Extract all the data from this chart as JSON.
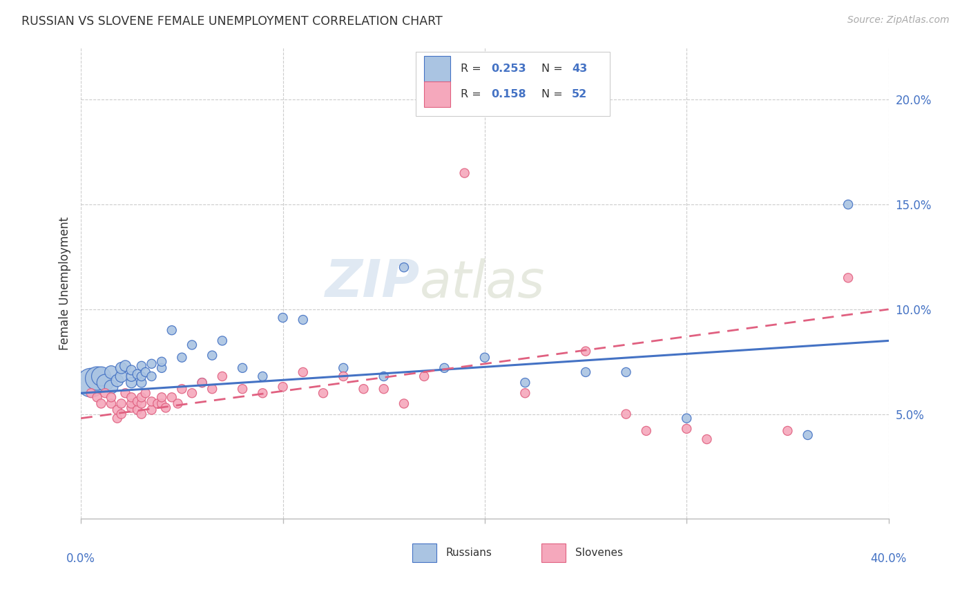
{
  "title": "RUSSIAN VS SLOVENE FEMALE UNEMPLOYMENT CORRELATION CHART",
  "source": "Source: ZipAtlas.com",
  "ylabel": "Female Unemployment",
  "yticks": [
    0.05,
    0.1,
    0.15,
    0.2
  ],
  "ytick_labels": [
    "5.0%",
    "10.0%",
    "15.0%",
    "20.0%"
  ],
  "xmin": 0.0,
  "xmax": 0.4,
  "ymin": 0.0,
  "ymax": 0.225,
  "watermark_zip": "ZIP",
  "watermark_atlas": "atlas",
  "russians_color": "#aac4e2",
  "slovenes_color": "#f5a8bc",
  "russians_edge_color": "#4472c4",
  "slovenes_edge_color": "#e06080",
  "russians_line_color": "#4472c4",
  "slovenes_line_color": "#e06080",
  "russians_x": [
    0.005,
    0.008,
    0.01,
    0.012,
    0.015,
    0.015,
    0.018,
    0.02,
    0.02,
    0.022,
    0.025,
    0.025,
    0.025,
    0.028,
    0.03,
    0.03,
    0.03,
    0.032,
    0.035,
    0.035,
    0.04,
    0.04,
    0.045,
    0.05,
    0.055,
    0.06,
    0.065,
    0.07,
    0.08,
    0.09,
    0.1,
    0.11,
    0.13,
    0.15,
    0.16,
    0.18,
    0.2,
    0.22,
    0.25,
    0.27,
    0.3,
    0.36,
    0.38
  ],
  "russians_y": [
    0.065,
    0.067,
    0.068,
    0.065,
    0.063,
    0.07,
    0.066,
    0.068,
    0.072,
    0.073,
    0.065,
    0.068,
    0.071,
    0.069,
    0.065,
    0.068,
    0.073,
    0.07,
    0.068,
    0.074,
    0.072,
    0.075,
    0.09,
    0.077,
    0.083,
    0.065,
    0.078,
    0.085,
    0.072,
    0.068,
    0.096,
    0.095,
    0.072,
    0.068,
    0.12,
    0.072,
    0.077,
    0.065,
    0.07,
    0.07,
    0.048,
    0.04,
    0.15
  ],
  "russians_sizes": [
    900,
    600,
    400,
    300,
    200,
    180,
    160,
    150,
    140,
    130,
    120,
    110,
    100,
    100,
    100,
    90,
    90,
    90,
    90,
    90,
    90,
    90,
    90,
    90,
    90,
    90,
    90,
    90,
    90,
    90,
    90,
    90,
    90,
    90,
    90,
    90,
    90,
    90,
    90,
    90,
    90,
    90,
    90
  ],
  "slovenes_x": [
    0.005,
    0.008,
    0.01,
    0.012,
    0.015,
    0.015,
    0.018,
    0.018,
    0.02,
    0.02,
    0.022,
    0.025,
    0.025,
    0.025,
    0.028,
    0.028,
    0.03,
    0.03,
    0.03,
    0.032,
    0.035,
    0.035,
    0.038,
    0.04,
    0.04,
    0.042,
    0.045,
    0.048,
    0.05,
    0.055,
    0.06,
    0.065,
    0.07,
    0.08,
    0.09,
    0.1,
    0.11,
    0.12,
    0.13,
    0.14,
    0.15,
    0.16,
    0.17,
    0.19,
    0.22,
    0.25,
    0.27,
    0.28,
    0.3,
    0.31,
    0.35,
    0.38
  ],
  "slovenes_y": [
    0.06,
    0.058,
    0.055,
    0.06,
    0.055,
    0.058,
    0.048,
    0.052,
    0.05,
    0.055,
    0.06,
    0.053,
    0.055,
    0.058,
    0.052,
    0.056,
    0.05,
    0.055,
    0.058,
    0.06,
    0.052,
    0.056,
    0.055,
    0.055,
    0.058,
    0.053,
    0.058,
    0.055,
    0.062,
    0.06,
    0.065,
    0.062,
    0.068,
    0.062,
    0.06,
    0.063,
    0.07,
    0.06,
    0.068,
    0.062,
    0.062,
    0.055,
    0.068,
    0.165,
    0.06,
    0.08,
    0.05,
    0.042,
    0.043,
    0.038,
    0.042,
    0.115
  ],
  "russians_trend_x": [
    0.0,
    0.4
  ],
  "russians_trend_y": [
    0.06,
    0.085
  ],
  "slovenes_trend_x": [
    0.0,
    0.4
  ],
  "slovenes_trend_y": [
    0.048,
    0.1
  ],
  "legend_r1_label": "R = ",
  "legend_r1_val": "0.253",
  "legend_n1_label": "N = ",
  "legend_n1_val": "43",
  "legend_r2_val": "0.158",
  "legend_n2_val": "52",
  "bottom_legend1": "Russians",
  "bottom_legend2": "Slovenes"
}
